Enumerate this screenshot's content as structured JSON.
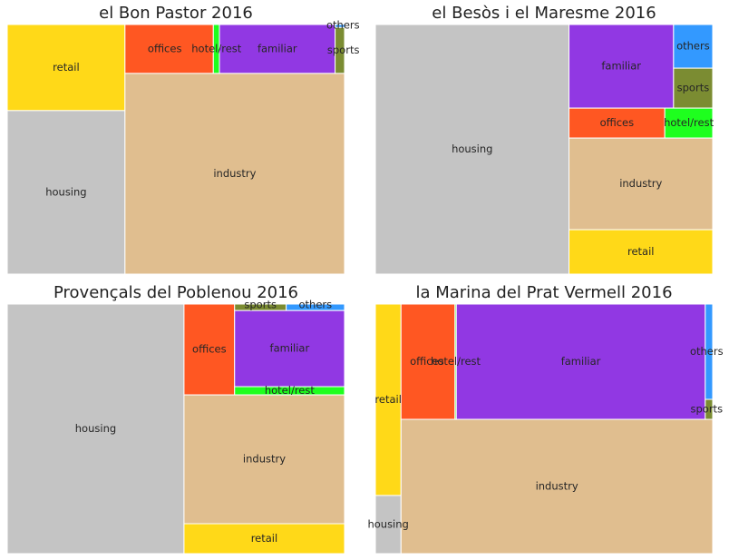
{
  "figure": {
    "background": "#ffffff"
  },
  "chart_data": [
    {
      "type": "treemap",
      "title": "el Bon Pastor 2016",
      "blocks": [
        {
          "label": "retail",
          "value": 26.6,
          "color": "#FFD918"
        },
        {
          "label": "housing",
          "value": 38.0,
          "color": "#C4C4C4"
        },
        {
          "label": "offices",
          "value": 5.6,
          "color": "#FF5722"
        },
        {
          "label": "hotel/rest",
          "value": 0.3,
          "color": "#1EFF1E"
        },
        {
          "label": "familiar",
          "value": 7.2,
          "color": "#9138E3"
        },
        {
          "label": "others",
          "value": 0.25,
          "color": "#3399FF"
        },
        {
          "label": "sports",
          "value": 1.65,
          "color": "#7B8C32"
        },
        {
          "label": "industry",
          "value": 115.0,
          "color": "#E0BE8F"
        }
      ]
    },
    {
      "type": "treemap",
      "title": "el Besòs i el Maresme 2016",
      "blocks": [
        {
          "label": "housing",
          "value": 145.5,
          "color": "#C4C4C4"
        },
        {
          "label": "familiar",
          "value": 22.1,
          "color": "#9138E3"
        },
        {
          "label": "others",
          "value": 7.8,
          "color": "#3399FF"
        },
        {
          "label": "sports",
          "value": 7.1,
          "color": "#7B8C32"
        },
        {
          "label": "offices",
          "value": 8.6,
          "color": "#FF5722"
        },
        {
          "label": "hotel/rest",
          "value": 4.3,
          "color": "#1EFF1E"
        },
        {
          "label": "industry",
          "value": 36.7,
          "color": "#E0BE8F"
        },
        {
          "label": "retail",
          "value": 18.3,
          "color": "#FFD918"
        }
      ]
    },
    {
      "type": "treemap",
      "title": "Provençals del Poblenou 2016",
      "blocks": [
        {
          "label": "housing",
          "value": 118.0,
          "color": "#C4C4C4"
        },
        {
          "label": "offices",
          "value": 10.0,
          "color": "#FF5722"
        },
        {
          "label": "sports",
          "value": 1.0,
          "color": "#7B8C32"
        },
        {
          "label": "others",
          "value": 1.2,
          "color": "#3399FF"
        },
        {
          "label": "familiar",
          "value": 12.1,
          "color": "#9138E3"
        },
        {
          "label": "hotel/rest",
          "value": 1.6,
          "color": "#1EFF1E"
        },
        {
          "label": "industry",
          "value": 25.7,
          "color": "#E0BE8F"
        },
        {
          "label": "retail",
          "value": 6.4,
          "color": "#FFD918"
        }
      ]
    },
    {
      "type": "treemap",
      "title": "la Marina del Prat Vermell 2016",
      "blocks": [
        {
          "label": "retail",
          "value": 5.6,
          "color": "#FFD918"
        },
        {
          "label": "housing",
          "value": 1.7,
          "color": "#C4C4C4"
        },
        {
          "label": "offices",
          "value": 6.0,
          "color": "#FF5722"
        },
        {
          "label": "hotel/rest",
          "value": 0.2,
          "color": "#1EFF1E"
        },
        {
          "label": "familiar",
          "value": 27.6,
          "color": "#9138E3"
        },
        {
          "label": "others",
          "value": 0.85,
          "color": "#3399FF"
        },
        {
          "label": "sports",
          "value": 0.2,
          "color": "#7B8C32"
        },
        {
          "label": "industry",
          "value": 43.7,
          "color": "#E0BE8F"
        }
      ]
    }
  ]
}
